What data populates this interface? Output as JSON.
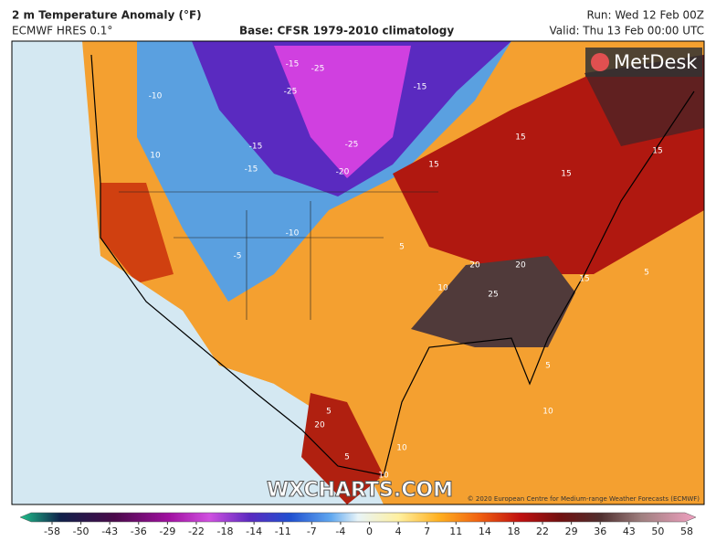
{
  "header": {
    "title": "2 m Temperature Anomaly (°F)",
    "model": "ECMWF HRES 0.1°",
    "base": "Base: CFSR 1979-2010 climatology",
    "run": "Run: Wed 12 Feb 00Z",
    "valid": "Valid: Thu 13 Feb 00:00 UTC"
  },
  "map": {
    "logo": "MetDesk",
    "watermark": "WXCHARTS.COM",
    "credit": "© 2020 European Centre for Medium-range Weather Forecasts (ECMWF)",
    "contour_labels": [
      "-15",
      "-25",
      "-25",
      "-15",
      "-20",
      "-25",
      "-15",
      "-15",
      "-10",
      "-10",
      "-5",
      "5",
      "10",
      "15",
      "15",
      "15",
      "15",
      "20",
      "25",
      "20",
      "10",
      "15",
      "5",
      "5",
      "10",
      "10",
      "5",
      "5",
      "20",
      "10"
    ]
  },
  "legend": {
    "ticks": [
      -58,
      -50,
      -43,
      -36,
      -29,
      -22,
      -18,
      -14,
      -11,
      -7,
      -4,
      0,
      4,
      7,
      11,
      14,
      18,
      22,
      29,
      36,
      43,
      50,
      58
    ]
  }
}
